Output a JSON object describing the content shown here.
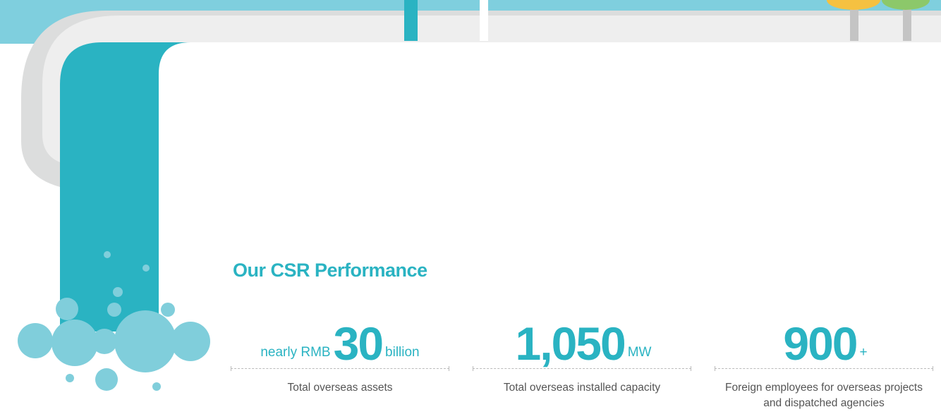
{
  "heading": "Our CSR Performance",
  "stats": [
    {
      "prefix": "nearly RMB",
      "value": "30",
      "unit": "billion",
      "caption": "Total overseas assets"
    },
    {
      "value": "1,050",
      "unit": "MW",
      "caption": "Total overseas installed capacity"
    },
    {
      "value": "900",
      "unit": "+",
      "caption": "Foreign employees for overseas projects and dispatched agencies"
    }
  ]
}
